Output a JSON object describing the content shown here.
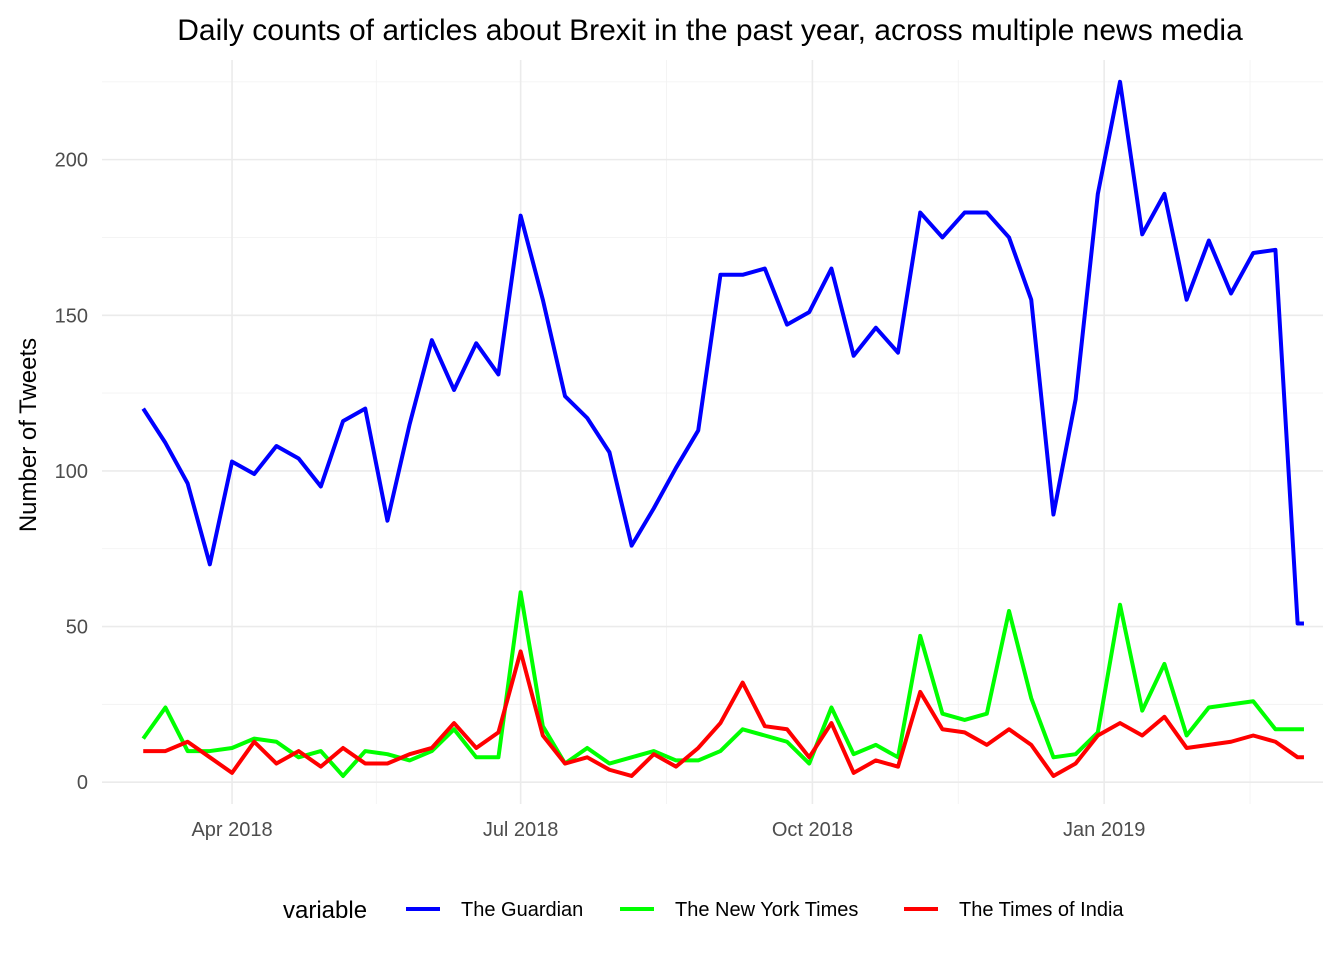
{
  "chart_data": {
    "type": "line",
    "title": "Daily counts of articles about Brexit in the past year, across multiple news media",
    "xlabel": "",
    "ylabel": "Number of Tweets",
    "x_axis": {
      "kind": "date",
      "range": [
        "2018-02-19",
        "2019-03-11"
      ],
      "tick_dates": [
        "2018-04-01",
        "2018-07-01",
        "2018-10-01",
        "2019-01-01"
      ],
      "tick_labels": [
        "Apr 2018",
        "Jul 2018",
        "Oct 2018",
        "Jan 2019"
      ]
    },
    "y_axis": {
      "range": [
        -7,
        232
      ],
      "ticks": [
        0,
        50,
        100,
        150,
        200
      ],
      "minor_ticks": [
        25,
        75,
        125,
        175,
        225
      ]
    },
    "grid": true,
    "legend": {
      "title": "variable",
      "position": "bottom"
    },
    "x": [
      "2018-03-04",
      "2018-03-11",
      "2018-03-18",
      "2018-03-25",
      "2018-04-01",
      "2018-04-08",
      "2018-04-15",
      "2018-04-22",
      "2018-04-29",
      "2018-05-06",
      "2018-05-13",
      "2018-05-20",
      "2018-05-27",
      "2018-06-03",
      "2018-06-10",
      "2018-06-17",
      "2018-06-24",
      "2018-07-01",
      "2018-07-08",
      "2018-07-15",
      "2018-07-22",
      "2018-07-29",
      "2018-08-05",
      "2018-08-12",
      "2018-08-19",
      "2018-08-26",
      "2018-09-02",
      "2018-09-09",
      "2018-09-16",
      "2018-09-23",
      "2018-09-30",
      "2018-10-07",
      "2018-10-14",
      "2018-10-21",
      "2018-10-28",
      "2018-11-04",
      "2018-11-11",
      "2018-11-18",
      "2018-11-25",
      "2018-12-02",
      "2018-12-09",
      "2018-12-16",
      "2018-12-23",
      "2018-12-30",
      "2019-01-06",
      "2019-01-13",
      "2019-01-20",
      "2019-01-27",
      "2019-02-03",
      "2019-02-10",
      "2019-02-17",
      "2019-02-24",
      "2019-03-03",
      "2019-03-05"
    ],
    "series": [
      {
        "name": "The Guardian",
        "color": "#0000ff",
        "values": [
          120,
          109,
          96,
          70,
          103,
          99,
          108,
          104,
          95,
          116,
          120,
          84,
          115,
          142,
          126,
          141,
          131,
          182,
          155,
          124,
          117,
          106,
          76,
          88,
          101,
          113,
          163,
          163,
          165,
          147,
          151,
          165,
          137,
          146,
          138,
          183,
          175,
          183,
          183,
          175,
          155,
          86,
          123,
          189,
          225,
          176,
          189,
          155,
          174,
          157,
          170,
          171,
          51,
          51
        ]
      },
      {
        "name": "The New York Times",
        "color": "#00ff00",
        "values": [
          14,
          24,
          10,
          10,
          11,
          14,
          13,
          8,
          10,
          2,
          10,
          9,
          7,
          10,
          17,
          8,
          8,
          61,
          18,
          6,
          11,
          6,
          8,
          10,
          7,
          7,
          10,
          17,
          15,
          13,
          6,
          24,
          9,
          12,
          8,
          47,
          22,
          20,
          22,
          55,
          27,
          8,
          9,
          16,
          57,
          23,
          38,
          15,
          24,
          25,
          26,
          17,
          17,
          17
        ]
      },
      {
        "name": "The Times of India",
        "color": "#ff0000",
        "values": [
          10,
          10,
          13,
          8,
          3,
          13,
          6,
          10,
          5,
          11,
          6,
          6,
          9,
          11,
          19,
          11,
          16,
          42,
          15,
          6,
          8,
          4,
          2,
          9,
          5,
          11,
          19,
          32,
          18,
          17,
          8,
          19,
          3,
          7,
          5,
          29,
          17,
          16,
          12,
          17,
          12,
          2,
          6,
          15,
          19,
          15,
          21,
          11,
          12,
          13,
          15,
          13,
          8,
          8
        ]
      }
    ]
  }
}
